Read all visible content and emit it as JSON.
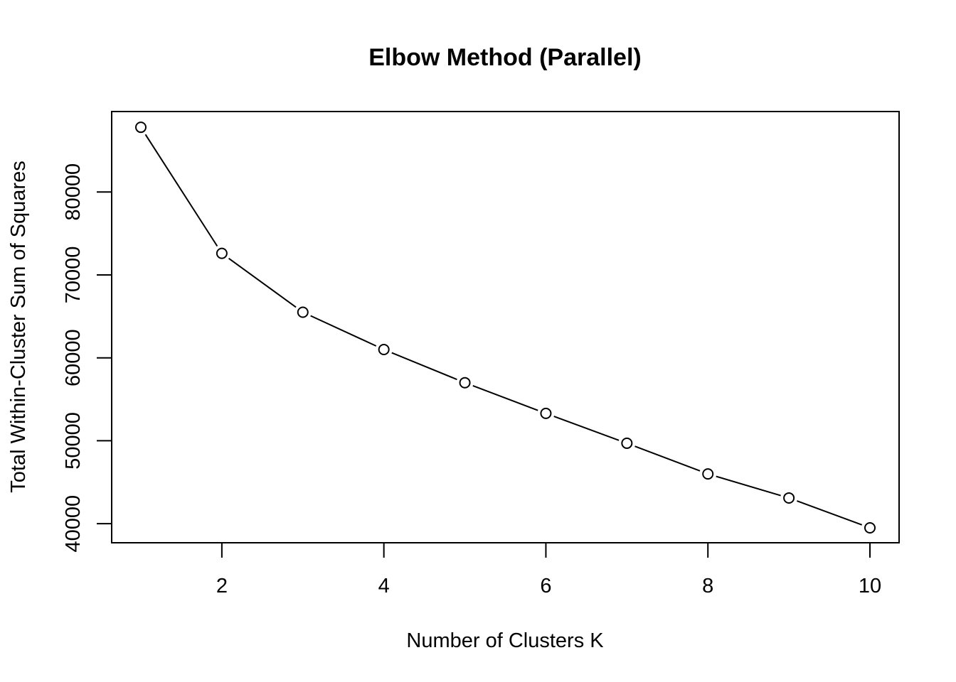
{
  "chart_data": {
    "type": "line",
    "title": "Elbow Method (Parallel)",
    "xlabel": "Number of Clusters K",
    "ylabel": "Total Within-Cluster Sum of Squares",
    "x": [
      1,
      2,
      3,
      4,
      5,
      6,
      7,
      8,
      9,
      10
    ],
    "series": [
      {
        "values": [
          87800,
          72600,
          65500,
          61000,
          57000,
          53300,
          49700,
          46000,
          43100,
          39500
        ]
      }
    ],
    "xlim": [
      0.64,
      10.36
    ],
    "ylim": [
      37700,
      89700
    ],
    "x_ticks": [
      2,
      4,
      6,
      8,
      10
    ],
    "y_ticks": [
      40000,
      50000,
      60000,
      70000,
      80000
    ],
    "x_tick_labels": [
      "2",
      "4",
      "6",
      "8",
      "10"
    ],
    "y_tick_labels": [
      "40000",
      "50000",
      "60000",
      "70000",
      "80000"
    ],
    "markers": "open-circle",
    "grid": false,
    "legend": "none",
    "colors": {
      "line": "#000000",
      "marker_fill": "#ffffff",
      "background": "#ffffff"
    }
  }
}
